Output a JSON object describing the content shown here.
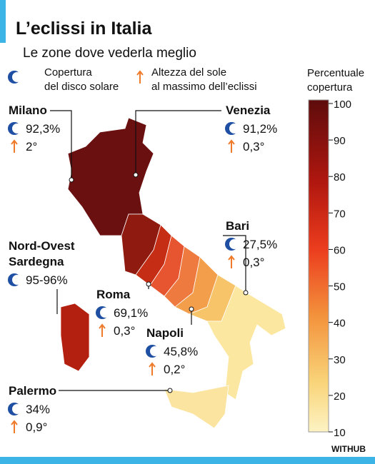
{
  "header": {
    "title": "L’eclissi in Italia",
    "subtitle": "Le zone dove vederla meglio"
  },
  "legend": [
    {
      "lines": [
        "Copertura",
        "del disco solare"
      ]
    },
    {
      "lines": [
        "Altezza del sole",
        "al massimo dell’eclissi"
      ]
    }
  ],
  "colorbar": {
    "title": [
      "Percentuale",
      "copertura"
    ],
    "ticks": [
      100,
      90,
      80,
      70,
      60,
      50,
      40,
      30,
      20,
      10
    ]
  },
  "cities": [
    {
      "name": [
        "Milano"
      ],
      "coverage": "92,3%",
      "sun": "2°"
    },
    {
      "name": [
        "Venezia"
      ],
      "coverage": "91,2%",
      "sun": "0,3°"
    },
    {
      "name": [
        "Bari"
      ],
      "coverage": "27,5%",
      "sun": "0,3°"
    },
    {
      "name": [
        "Nord-Ovest",
        "Sardegna"
      ],
      "coverage": "95-96%"
    },
    {
      "name": [
        "Roma"
      ],
      "coverage": "69,1%",
      "sun": "0,3°"
    },
    {
      "name": [
        "Napoli"
      ],
      "coverage": "45,8%",
      "sun": "0,2°"
    },
    {
      "name": [
        "Palermo"
      ],
      "coverage": "34%",
      "sun": "0,9°"
    }
  ],
  "credit": "WITHUB"
}
